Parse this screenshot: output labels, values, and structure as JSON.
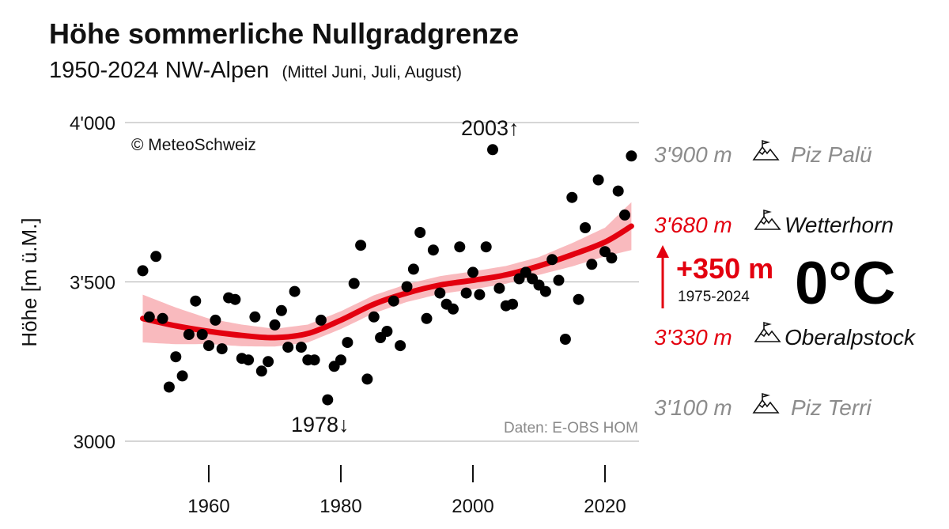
{
  "title": "Höhe sommerliche Nullgradgrenze",
  "subtitle": {
    "main": "1950-2024 NW-Alpen",
    "note": "(Mittel Juni, Juli, August)"
  },
  "credit": "© MeteoSchweiz",
  "source": "Daten: E-OBS HOM",
  "annotations": {
    "high": "2003↑",
    "low": "1978↓"
  },
  "peaks": [
    {
      "height": "3'900 m",
      "name": "Piz Palü",
      "style": "grey"
    },
    {
      "height": "3'680 m",
      "name": "Wetterhorn",
      "style": "red"
    },
    {
      "height": "3'330 m",
      "name": "Oberalpstock",
      "style": "red"
    },
    {
      "height": "3'100 m",
      "name": "Piz Terri",
      "style": "grey"
    }
  ],
  "change": {
    "value": "+350 m",
    "period": "1975-2024",
    "label": "0°C"
  },
  "colors": {
    "points": "#000000",
    "trend": "#e3000f",
    "band": "#f7a3a8",
    "grid": "#bdbdbd",
    "grey_text": "#8c8c8c"
  },
  "chart_data": {
    "type": "scatter",
    "title": "Höhe sommerliche Nullgradgrenze",
    "ylabel": "Höhe [m ü.M.]",
    "xlabel": "",
    "xlim": [
      1948,
      2025
    ],
    "ylim": [
      3000,
      4000
    ],
    "grid": "horizontal",
    "x_ticks": [
      1960,
      1980,
      2000,
      2020
    ],
    "y_ticks": [
      3000,
      3500,
      4000
    ],
    "y_tick_labels": [
      "3000",
      "3'500",
      "4'000"
    ],
    "points": [
      [
        1950,
        3535
      ],
      [
        1951,
        3390
      ],
      [
        1952,
        3580
      ],
      [
        1953,
        3385
      ],
      [
        1954,
        3170
      ],
      [
        1955,
        3265
      ],
      [
        1956,
        3205
      ],
      [
        1957,
        3335
      ],
      [
        1958,
        3440
      ],
      [
        1959,
        3335
      ],
      [
        1960,
        3300
      ],
      [
        1961,
        3380
      ],
      [
        1962,
        3290
      ],
      [
        1963,
        3450
      ],
      [
        1964,
        3445
      ],
      [
        1965,
        3260
      ],
      [
        1966,
        3255
      ],
      [
        1967,
        3390
      ],
      [
        1968,
        3220
      ],
      [
        1969,
        3250
      ],
      [
        1970,
        3365
      ],
      [
        1971,
        3410
      ],
      [
        1972,
        3295
      ],
      [
        1973,
        3470
      ],
      [
        1974,
        3295
      ],
      [
        1975,
        3255
      ],
      [
        1976,
        3255
      ],
      [
        1977,
        3380
      ],
      [
        1978,
        3130
      ],
      [
        1979,
        3235
      ],
      [
        1980,
        3255
      ],
      [
        1981,
        3310
      ],
      [
        1982,
        3495
      ],
      [
        1983,
        3615
      ],
      [
        1984,
        3195
      ],
      [
        1985,
        3390
      ],
      [
        1986,
        3325
      ],
      [
        1987,
        3345
      ],
      [
        1988,
        3440
      ],
      [
        1989,
        3300
      ],
      [
        1990,
        3485
      ],
      [
        1991,
        3540
      ],
      [
        1992,
        3655
      ],
      [
        1993,
        3385
      ],
      [
        1994,
        3600
      ],
      [
        1995,
        3465
      ],
      [
        1996,
        3430
      ],
      [
        1997,
        3415
      ],
      [
        1998,
        3610
      ],
      [
        1999,
        3465
      ],
      [
        2000,
        3530
      ],
      [
        2001,
        3460
      ],
      [
        2002,
        3610
      ],
      [
        2003,
        3915
      ],
      [
        2004,
        3480
      ],
      [
        2005,
        3425
      ],
      [
        2006,
        3430
      ],
      [
        2007,
        3510
      ],
      [
        2008,
        3530
      ],
      [
        2009,
        3510
      ],
      [
        2010,
        3490
      ],
      [
        2011,
        3470
      ],
      [
        2012,
        3570
      ],
      [
        2013,
        3505
      ],
      [
        2014,
        3320
      ],
      [
        2015,
        3765
      ],
      [
        2016,
        3445
      ],
      [
        2017,
        3670
      ],
      [
        2018,
        3555
      ],
      [
        2019,
        3820
      ],
      [
        2020,
        3595
      ],
      [
        2021,
        3575
      ],
      [
        2022,
        3785
      ],
      [
        2023,
        3710
      ],
      [
        2024,
        3895
      ]
    ],
    "trend": [
      [
        1950,
        3385
      ],
      [
        1955,
        3362
      ],
      [
        1960,
        3345
      ],
      [
        1965,
        3332
      ],
      [
        1970,
        3325
      ],
      [
        1975,
        3338
      ],
      [
        1980,
        3380
      ],
      [
        1985,
        3430
      ],
      [
        1990,
        3465
      ],
      [
        1995,
        3490
      ],
      [
        2000,
        3505
      ],
      [
        2005,
        3522
      ],
      [
        2010,
        3550
      ],
      [
        2015,
        3585
      ],
      [
        2020,
        3625
      ],
      [
        2024,
        3675
      ]
    ],
    "trend_band_halfwidth": [
      [
        1950,
        75
      ],
      [
        1960,
        40
      ],
      [
        1970,
        28
      ],
      [
        1980,
        28
      ],
      [
        1990,
        28
      ],
      [
        2000,
        28
      ],
      [
        2010,
        28
      ],
      [
        2020,
        45
      ],
      [
        2024,
        75
      ]
    ]
  }
}
